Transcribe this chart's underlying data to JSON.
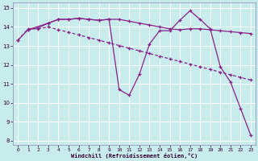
{
  "xlabel": "Windchill (Refroidissement éolien,°C)",
  "bg_color": "#c8ecec",
  "grid_color": "#ffffff",
  "line_color": "#882288",
  "xlim_min": -0.5,
  "xlim_max": 23.5,
  "ylim_min": 7.8,
  "ylim_max": 15.3,
  "xticks": [
    0,
    1,
    2,
    3,
    4,
    5,
    6,
    7,
    8,
    9,
    10,
    11,
    12,
    13,
    14,
    15,
    16,
    17,
    18,
    19,
    20,
    21,
    22,
    23
  ],
  "yticks": [
    8,
    9,
    10,
    11,
    12,
    13,
    14,
    15
  ],
  "series1_x": [
    0,
    1,
    2,
    3,
    4,
    5,
    6,
    7,
    8,
    9,
    10,
    11,
    12,
    13,
    14,
    15,
    16,
    17,
    18,
    19,
    20,
    21,
    22,
    23
  ],
  "series1_y": [
    13.3,
    13.85,
    13.95,
    14.2,
    14.4,
    14.4,
    14.45,
    14.4,
    14.35,
    14.4,
    14.4,
    14.3,
    14.2,
    14.1,
    14.0,
    13.9,
    13.85,
    13.9,
    13.9,
    13.85,
    13.8,
    13.75,
    13.7,
    13.65
  ],
  "series2_x": [
    0,
    1,
    2,
    3,
    4,
    5,
    6,
    7,
    8,
    9,
    10,
    11,
    12,
    13,
    14,
    15,
    16,
    17,
    18,
    19,
    20,
    21,
    22,
    23
  ],
  "series2_y": [
    13.3,
    13.9,
    13.9,
    14.0,
    13.85,
    13.72,
    13.58,
    13.44,
    13.3,
    13.16,
    13.02,
    12.88,
    12.74,
    12.6,
    12.46,
    12.32,
    12.18,
    12.04,
    11.9,
    11.76,
    11.62,
    11.48,
    11.34,
    11.2
  ],
  "series3_x": [
    1,
    3,
    4,
    5,
    6,
    7,
    8,
    9,
    10,
    11,
    12,
    13,
    14,
    15,
    16,
    17,
    18,
    19,
    20,
    21,
    22,
    23
  ],
  "series3_y": [
    13.85,
    14.2,
    14.4,
    14.4,
    14.45,
    14.4,
    14.35,
    14.4,
    10.7,
    10.4,
    11.5,
    13.1,
    13.8,
    13.8,
    14.35,
    14.85,
    14.4,
    13.9,
    11.9,
    11.1,
    9.7,
    8.3
  ]
}
